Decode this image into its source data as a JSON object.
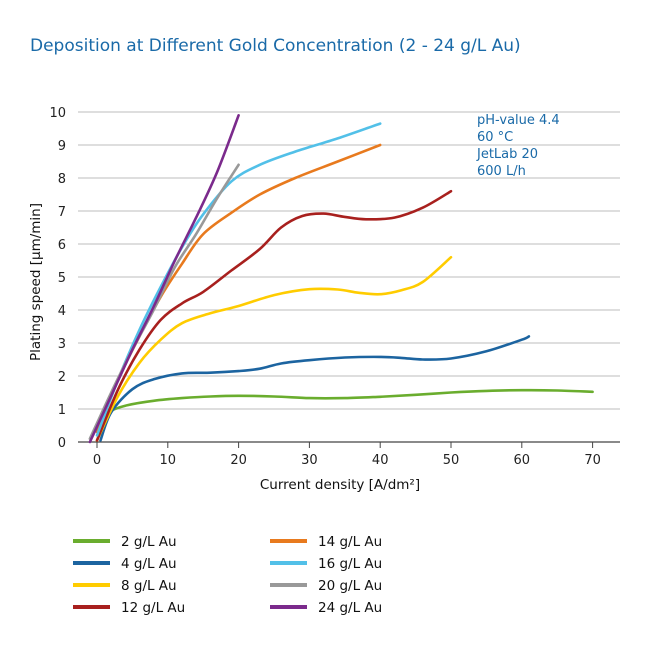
{
  "chart_data": {
    "type": "line",
    "title": "Deposition at Different Gold Concentration (2 - 24 g/L Au)",
    "xlabel": "Current density [A/dm²]",
    "ylabel": "Plating speed [µm/min]",
    "xlim": [
      -3,
      74
    ],
    "ylim": [
      0,
      10.3
    ],
    "xticks": [
      0,
      10,
      20,
      30,
      40,
      50,
      60,
      70
    ],
    "yticks": [
      0,
      1,
      2,
      3,
      4,
      5,
      6,
      7,
      8,
      9,
      10
    ],
    "grid": "horizontal",
    "legend_position": "bottom",
    "annotations": [
      "pH-value 4.4",
      "60 °C",
      "JetLab 20",
      "600 L/h"
    ],
    "series": [
      {
        "name": "2 g/L Au",
        "color": "#6aad2e",
        "points": [
          [
            0.5,
            0.7
          ],
          [
            1.5,
            0.9
          ],
          [
            4,
            1.1
          ],
          [
            8,
            1.25
          ],
          [
            12,
            1.33
          ],
          [
            16,
            1.38
          ],
          [
            20,
            1.4
          ],
          [
            25,
            1.38
          ],
          [
            30,
            1.33
          ],
          [
            35,
            1.33
          ],
          [
            40,
            1.37
          ],
          [
            45,
            1.43
          ],
          [
            50,
            1.5
          ],
          [
            55,
            1.55
          ],
          [
            60,
            1.57
          ],
          [
            65,
            1.56
          ],
          [
            70,
            1.52
          ]
        ]
      },
      {
        "name": "4 g/L Au",
        "color": "#1c64a0",
        "points": [
          [
            0.5,
            0.05
          ],
          [
            2,
            0.9
          ],
          [
            5,
            1.6
          ],
          [
            8,
            1.9
          ],
          [
            12,
            2.08
          ],
          [
            16,
            2.1
          ],
          [
            20,
            2.15
          ],
          [
            23,
            2.22
          ],
          [
            26,
            2.38
          ],
          [
            30,
            2.48
          ],
          [
            35,
            2.56
          ],
          [
            40,
            2.58
          ],
          [
            43,
            2.55
          ],
          [
            46,
            2.5
          ],
          [
            50,
            2.53
          ],
          [
            55,
            2.75
          ],
          [
            60,
            3.1
          ],
          [
            61,
            3.2
          ]
        ]
      },
      {
        "name": "8 g/L Au",
        "color": "#ffcc00",
        "points": [
          [
            0,
            0.05
          ],
          [
            3,
            1.4
          ],
          [
            6,
            2.4
          ],
          [
            9,
            3.1
          ],
          [
            12,
            3.6
          ],
          [
            16,
            3.9
          ],
          [
            20,
            4.12
          ],
          [
            25,
            4.45
          ],
          [
            30,
            4.63
          ],
          [
            34,
            4.62
          ],
          [
            37,
            4.52
          ],
          [
            40,
            4.48
          ],
          [
            43,
            4.6
          ],
          [
            46,
            4.85
          ],
          [
            50,
            5.6
          ]
        ]
      },
      {
        "name": "12 g/L Au",
        "color": "#a8201e",
        "points": [
          [
            0,
            0.05
          ],
          [
            3,
            1.6
          ],
          [
            6,
            2.8
          ],
          [
            9,
            3.7
          ],
          [
            12,
            4.2
          ],
          [
            15,
            4.55
          ],
          [
            19,
            5.2
          ],
          [
            23,
            5.85
          ],
          [
            26,
            6.5
          ],
          [
            29,
            6.85
          ],
          [
            32,
            6.92
          ],
          [
            35,
            6.82
          ],
          [
            38,
            6.75
          ],
          [
            42,
            6.8
          ],
          [
            46,
            7.1
          ],
          [
            50,
            7.6
          ]
        ]
      },
      {
        "name": "14 g/L Au",
        "color": "#e87a1e",
        "points": [
          [
            0,
            0.3
          ],
          [
            3,
            1.9
          ],
          [
            6,
            3.2
          ],
          [
            9,
            4.4
          ],
          [
            12,
            5.4
          ],
          [
            15,
            6.3
          ],
          [
            19,
            6.95
          ],
          [
            23,
            7.5
          ],
          [
            28,
            8.0
          ],
          [
            34,
            8.5
          ],
          [
            40,
            9.0
          ]
        ]
      },
      {
        "name": "16 g/L Au",
        "color": "#52c0e8",
        "points": [
          [
            0,
            0.2
          ],
          [
            3,
            1.9
          ],
          [
            6,
            3.4
          ],
          [
            9,
            4.7
          ],
          [
            12,
            5.9
          ],
          [
            15,
            6.9
          ],
          [
            19,
            7.9
          ],
          [
            23,
            8.4
          ],
          [
            28,
            8.8
          ],
          [
            34,
            9.2
          ],
          [
            40,
            9.65
          ]
        ]
      },
      {
        "name": "20 g/L Au",
        "color": "#999999",
        "points": [
          [
            -1,
            0.1
          ],
          [
            2,
            1.5
          ],
          [
            5,
            2.8
          ],
          [
            8,
            4.0
          ],
          [
            11,
            5.3
          ],
          [
            14,
            6.3
          ],
          [
            17,
            7.4
          ],
          [
            20,
            8.4
          ]
        ]
      },
      {
        "name": "24 g/L Au",
        "color": "#7b2a8c",
        "points": [
          [
            -1,
            0.0
          ],
          [
            2,
            1.4
          ],
          [
            5,
            2.8
          ],
          [
            8,
            4.1
          ],
          [
            11,
            5.5
          ],
          [
            14,
            6.8
          ],
          [
            17,
            8.2
          ],
          [
            20,
            9.9
          ]
        ]
      }
    ]
  }
}
